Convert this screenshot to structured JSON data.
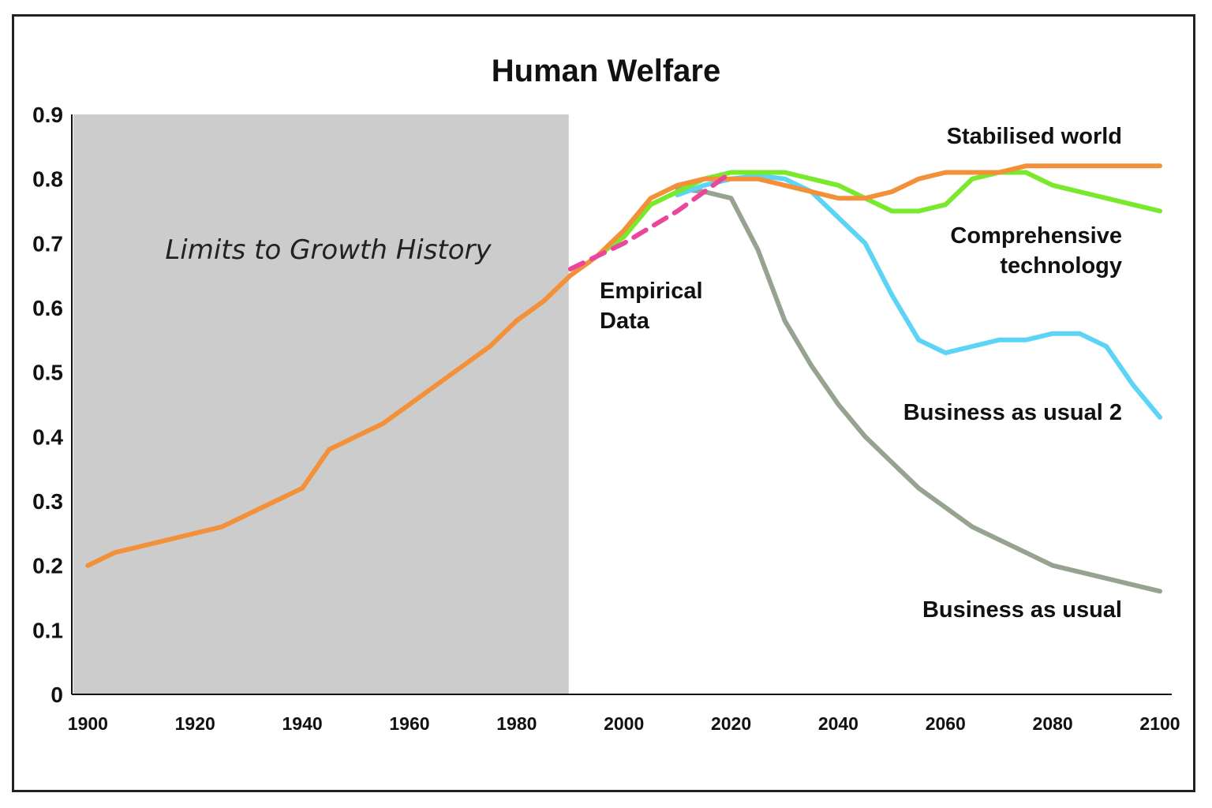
{
  "chart_data": {
    "type": "line",
    "title": "Human Welfare",
    "xlabel": "",
    "ylabel": "",
    "xlim": [
      1897,
      2100
    ],
    "ylim": [
      0,
      0.9
    ],
    "x_ticks": [
      "1900",
      "1920",
      "1940",
      "1960",
      "1980",
      "2000",
      "2020",
      "2040",
      "2060",
      "2080",
      "2100"
    ],
    "y_ticks": [
      "0",
      "0.1",
      "0.2",
      "0.3",
      "0.4",
      "0.5",
      "0.6",
      "0.7",
      "0.8",
      "0.9"
    ],
    "grid": false,
    "shaded_region": {
      "label": "Limits to Growth History",
      "x_range": [
        1895,
        1990
      ],
      "color": "#cccccc"
    },
    "series": [
      {
        "name": "Business as usual",
        "color": "#97a391",
        "style": "solid",
        "points": [
          [
            2010,
            0.785
          ],
          [
            2015,
            0.78
          ],
          [
            2020,
            0.77
          ],
          [
            2025,
            0.69
          ],
          [
            2030,
            0.58
          ],
          [
            2035,
            0.51
          ],
          [
            2040,
            0.45
          ],
          [
            2045,
            0.4
          ],
          [
            2050,
            0.36
          ],
          [
            2055,
            0.32
          ],
          [
            2060,
            0.29
          ],
          [
            2065,
            0.26
          ],
          [
            2070,
            0.24
          ],
          [
            2075,
            0.22
          ],
          [
            2080,
            0.2
          ],
          [
            2085,
            0.19
          ],
          [
            2090,
            0.18
          ],
          [
            2095,
            0.17
          ],
          [
            2100,
            0.16
          ]
        ]
      },
      {
        "name": "Business as usual 2",
        "color": "#5dd3f5",
        "style": "solid",
        "points": [
          [
            2010,
            0.775
          ],
          [
            2015,
            0.79
          ],
          [
            2020,
            0.8
          ],
          [
            2025,
            0.805
          ],
          [
            2030,
            0.8
          ],
          [
            2035,
            0.78
          ],
          [
            2040,
            0.74
          ],
          [
            2045,
            0.7
          ],
          [
            2050,
            0.62
          ],
          [
            2055,
            0.55
          ],
          [
            2060,
            0.53
          ],
          [
            2065,
            0.54
          ],
          [
            2070,
            0.55
          ],
          [
            2075,
            0.55
          ],
          [
            2080,
            0.56
          ],
          [
            2085,
            0.56
          ],
          [
            2090,
            0.54
          ],
          [
            2095,
            0.48
          ],
          [
            2100,
            0.43
          ]
        ]
      },
      {
        "name": "Comprehensive technology",
        "color": "#7ae82c",
        "style": "solid",
        "points": [
          [
            1995,
            0.68
          ],
          [
            2000,
            0.71
          ],
          [
            2005,
            0.76
          ],
          [
            2010,
            0.78
          ],
          [
            2015,
            0.8
          ],
          [
            2020,
            0.81
          ],
          [
            2025,
            0.81
          ],
          [
            2030,
            0.81
          ],
          [
            2035,
            0.8
          ],
          [
            2040,
            0.79
          ],
          [
            2045,
            0.77
          ],
          [
            2050,
            0.75
          ],
          [
            2055,
            0.75
          ],
          [
            2060,
            0.76
          ],
          [
            2065,
            0.8
          ],
          [
            2070,
            0.81
          ],
          [
            2075,
            0.81
          ],
          [
            2080,
            0.79
          ],
          [
            2085,
            0.78
          ],
          [
            2090,
            0.77
          ],
          [
            2095,
            0.76
          ],
          [
            2100,
            0.75
          ]
        ]
      },
      {
        "name": "Stabilised world",
        "color": "#f3913a",
        "style": "solid",
        "points": [
          [
            1900,
            0.2
          ],
          [
            1905,
            0.22
          ],
          [
            1910,
            0.23
          ],
          [
            1915,
            0.24
          ],
          [
            1920,
            0.25
          ],
          [
            1925,
            0.26
          ],
          [
            1930,
            0.28
          ],
          [
            1935,
            0.3
          ],
          [
            1940,
            0.32
          ],
          [
            1945,
            0.38
          ],
          [
            1950,
            0.4
          ],
          [
            1955,
            0.42
          ],
          [
            1960,
            0.45
          ],
          [
            1965,
            0.48
          ],
          [
            1970,
            0.51
          ],
          [
            1975,
            0.54
          ],
          [
            1980,
            0.58
          ],
          [
            1985,
            0.61
          ],
          [
            1990,
            0.65
          ],
          [
            1995,
            0.68
          ],
          [
            2000,
            0.72
          ],
          [
            2005,
            0.77
          ],
          [
            2010,
            0.79
          ],
          [
            2015,
            0.8
          ],
          [
            2020,
            0.8
          ],
          [
            2025,
            0.8
          ],
          [
            2030,
            0.79
          ],
          [
            2035,
            0.78
          ],
          [
            2040,
            0.77
          ],
          [
            2045,
            0.77
          ],
          [
            2050,
            0.78
          ],
          [
            2055,
            0.8
          ],
          [
            2060,
            0.81
          ],
          [
            2065,
            0.81
          ],
          [
            2070,
            0.81
          ],
          [
            2075,
            0.82
          ],
          [
            2080,
            0.82
          ],
          [
            2085,
            0.82
          ],
          [
            2090,
            0.82
          ],
          [
            2095,
            0.82
          ],
          [
            2100,
            0.82
          ]
        ]
      },
      {
        "name": "Empirical Data",
        "color": "#e8479c",
        "style": "dashed",
        "points": [
          [
            1990,
            0.66
          ],
          [
            2000,
            0.7
          ],
          [
            2010,
            0.75
          ],
          [
            2020,
            0.81
          ]
        ]
      }
    ],
    "annotations": [
      "Stabilised world",
      "Comprehensive technology",
      "Empirical Data",
      "Business as usual 2",
      "Business as usual",
      "Limits to Growth History"
    ]
  },
  "labels": {
    "stabilised": "Stabilised world",
    "comprehensive_1": "Comprehensive",
    "comprehensive_2": "technology",
    "empirical_1": "Empirical",
    "empirical_2": "Data",
    "bau2": "Business as usual 2",
    "bau": "Business as usual",
    "history": "Limits to Growth History"
  }
}
